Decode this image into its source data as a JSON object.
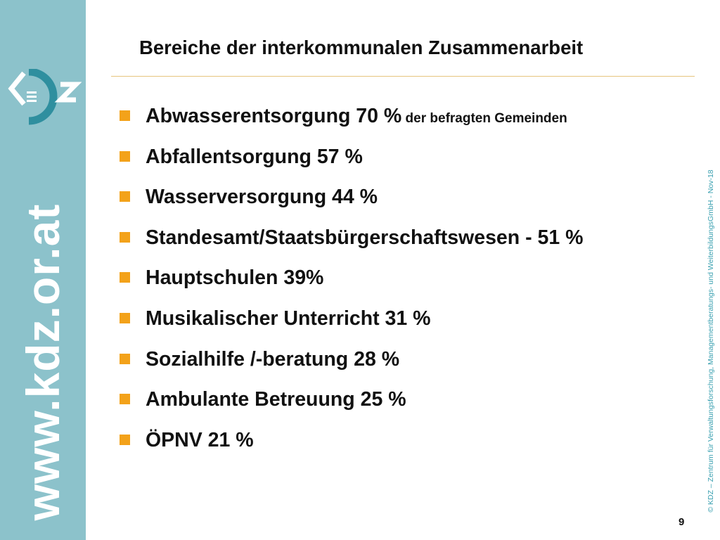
{
  "sidebar": {
    "logo_text": "KDZ",
    "url": "www.kdz.or.at",
    "color": "#8cc2cb"
  },
  "slide": {
    "title": "Bereiche der interkommunalen Zusammenarbeit",
    "bullet_color": "#f3a21a",
    "items": [
      {
        "text": "Abwasserentsorgung 70 %",
        "note": " der befragten Gemeinden"
      },
      {
        "text": "Abfallentsorgung 57 %"
      },
      {
        "text": "Wasserversorgung 44 %"
      },
      {
        "text": "Standesamt/Staatsbürgerschaftswesen - 51 %"
      },
      {
        "text": "Hauptschulen 39%"
      },
      {
        "text": "Musikalischer Unterricht 31 %"
      },
      {
        "text": "Sozialhilfe /-beratung 28 %"
      },
      {
        "text": "Ambulante Betreuung 25 %"
      },
      {
        "text": "ÖPNV 21 %"
      }
    ],
    "copyright": "© KDZ – Zentrum für Verwaltungsforschung, Managementberatungs- und WeiterbildungsGmbH - Nov-18",
    "page_number": "9"
  }
}
